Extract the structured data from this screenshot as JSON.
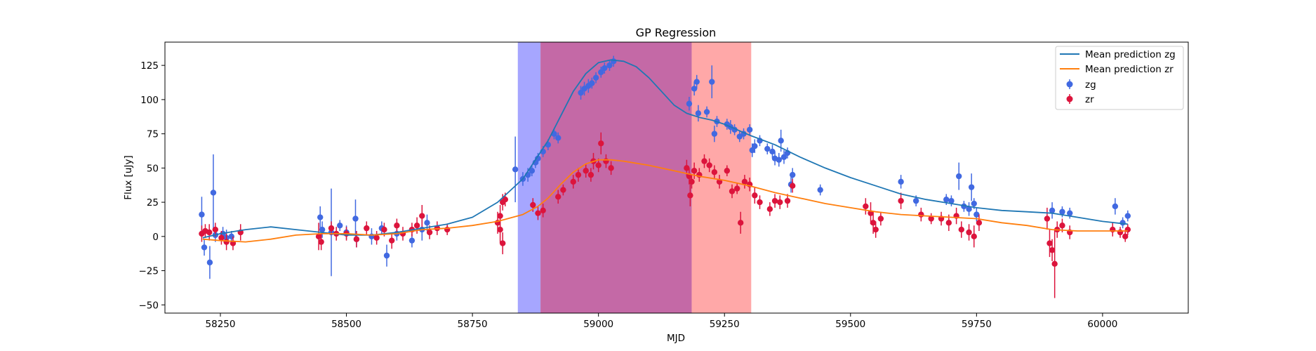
{
  "chart_data": {
    "type": "scatter",
    "title": "GP Regression",
    "xlabel": "MJD",
    "ylabel": "Flux [uJy]",
    "xlim": [
      58140,
      60170
    ],
    "ylim": [
      -56,
      142
    ],
    "xticks": [
      58250,
      58500,
      58750,
      59000,
      59250,
      59500,
      59750,
      60000
    ],
    "yticks": [
      -50,
      -25,
      0,
      25,
      50,
      75,
      100,
      125
    ],
    "legend_position": "top-right",
    "grid": false,
    "shaded_regions": [
      {
        "x_range": [
          58840,
          58885
        ],
        "color": "#a6a6ff"
      },
      {
        "x_range": [
          58885,
          59185
        ],
        "color": "#c469a6"
      },
      {
        "x_range": [
          59185,
          59303
        ],
        "color": "#ffa8a8"
      }
    ],
    "series": [
      {
        "name": "Mean prediction zg",
        "kind": "line",
        "color": "#1f77b4",
        "x": [
          58215,
          58250,
          58300,
          58350,
          58400,
          58450,
          58500,
          58550,
          58600,
          58650,
          58700,
          58750,
          58800,
          58850,
          58900,
          58925,
          58950,
          58975,
          59000,
          59025,
          59050,
          59075,
          59100,
          59125,
          59150,
          59175,
          59200,
          59225,
          59250,
          59275,
          59300,
          59350,
          59400,
          59450,
          59500,
          59550,
          59600,
          59650,
          59700,
          59750,
          59800,
          59850,
          59900,
          59950,
          60000,
          60050
        ],
        "y": [
          -1,
          2,
          5,
          7,
          5,
          3,
          1,
          1,
          3,
          6,
          9,
          14,
          25,
          42,
          70,
          88,
          106,
          119,
          127,
          129,
          128,
          124,
          116,
          106,
          96,
          90,
          87,
          85,
          82,
          78,
          74,
          67,
          58,
          50,
          43,
          37,
          31,
          27,
          24,
          21,
          19,
          18,
          17,
          14,
          11,
          9
        ]
      },
      {
        "name": "Mean prediction zr",
        "kind": "line",
        "color": "#ff7f0e",
        "x": [
          58215,
          58250,
          58300,
          58350,
          58400,
          58450,
          58500,
          58550,
          58600,
          58650,
          58700,
          58750,
          58800,
          58850,
          58880,
          58900,
          58925,
          58950,
          58975,
          59000,
          59025,
          59050,
          59100,
          59150,
          59200,
          59250,
          59300,
          59350,
          59400,
          59450,
          59500,
          59550,
          59600,
          59650,
          59700,
          59750,
          59800,
          59850,
          59900,
          59950,
          60000,
          60050
        ],
        "y": [
          -2,
          -3,
          -4,
          -2,
          1,
          2,
          2,
          1,
          2,
          5,
          6,
          8,
          11,
          16,
          22,
          28,
          38,
          47,
          53,
          56,
          56,
          55,
          52,
          48,
          44,
          41,
          37,
          32,
          28,
          24,
          21,
          18,
          16,
          15,
          14,
          13,
          10,
          8,
          5,
          4,
          4,
          4
        ]
      },
      {
        "name": "zg",
        "kind": "errorbar",
        "color": "#4169e1",
        "points": [
          [
            58213,
            16,
            13
          ],
          [
            58218,
            -8,
            6
          ],
          [
            58229,
            -19,
            12
          ],
          [
            58236,
            32,
            28
          ],
          [
            58240,
            1,
            5
          ],
          [
            58255,
            2,
            5
          ],
          [
            58262,
            -1,
            6
          ],
          [
            58272,
            0,
            4
          ],
          [
            58448,
            14,
            8
          ],
          [
            58452,
            5,
            6
          ],
          [
            58470,
            3,
            32
          ],
          [
            58487,
            8,
            4
          ],
          [
            58500,
            3,
            5
          ],
          [
            58518,
            13,
            14
          ],
          [
            58520,
            -2,
            6
          ],
          [
            58550,
            0,
            6
          ],
          [
            58570,
            6,
            5
          ],
          [
            58580,
            -14,
            8
          ],
          [
            58600,
            2,
            5
          ],
          [
            58630,
            -3,
            5
          ],
          [
            58650,
            5,
            8
          ],
          [
            58660,
            10,
            6
          ],
          [
            58835,
            49,
            24
          ],
          [
            58850,
            42,
            5
          ],
          [
            58860,
            45,
            5
          ],
          [
            58868,
            48,
            4
          ],
          [
            58875,
            54,
            4
          ],
          [
            58880,
            57,
            4
          ],
          [
            58890,
            62,
            4
          ],
          [
            58900,
            67,
            4
          ],
          [
            58912,
            75,
            4
          ],
          [
            58920,
            72,
            4
          ],
          [
            58965,
            105,
            5
          ],
          [
            58972,
            108,
            5
          ],
          [
            58980,
            110,
            5
          ],
          [
            58987,
            112,
            4
          ],
          [
            58995,
            116,
            4
          ],
          [
            59005,
            120,
            4
          ],
          [
            59012,
            123,
            4
          ],
          [
            59022,
            125,
            4
          ],
          [
            59030,
            128,
            4
          ],
          [
            59180,
            97,
            5
          ],
          [
            59190,
            108,
            5
          ],
          [
            59195,
            113,
            5
          ],
          [
            59198,
            90,
            6
          ],
          [
            59215,
            91,
            4
          ],
          [
            59225,
            113,
            12
          ],
          [
            59230,
            75,
            6
          ],
          [
            59235,
            84,
            4
          ],
          [
            59255,
            82,
            4
          ],
          [
            59262,
            80,
            5
          ],
          [
            59270,
            78,
            4
          ],
          [
            59280,
            73,
            4
          ],
          [
            59288,
            75,
            4
          ],
          [
            59300,
            78,
            4
          ],
          [
            59305,
            63,
            5
          ],
          [
            59310,
            66,
            5
          ],
          [
            59320,
            70,
            4
          ],
          [
            59335,
            64,
            4
          ],
          [
            59345,
            62,
            5
          ],
          [
            59350,
            57,
            5
          ],
          [
            59358,
            56,
            5
          ],
          [
            59362,
            70,
            8
          ],
          [
            59368,
            58,
            5
          ],
          [
            59375,
            61,
            4
          ],
          [
            59382,
            38,
            6
          ],
          [
            59385,
            45,
            5
          ],
          [
            59440,
            34,
            4
          ],
          [
            59600,
            40,
            5
          ],
          [
            59630,
            26,
            4
          ],
          [
            59690,
            27,
            4
          ],
          [
            59700,
            26,
            4
          ],
          [
            59715,
            44,
            10
          ],
          [
            59725,
            22,
            4
          ],
          [
            59735,
            20,
            5
          ],
          [
            59740,
            36,
            10
          ],
          [
            59745,
            24,
            4
          ],
          [
            59750,
            16,
            5
          ],
          [
            59900,
            19,
            6
          ],
          [
            59920,
            18,
            4
          ],
          [
            59935,
            17,
            4
          ],
          [
            60025,
            22,
            6
          ],
          [
            60040,
            10,
            4
          ],
          [
            60050,
            15,
            4
          ]
        ]
      },
      {
        "name": "zr",
        "kind": "errorbar",
        "color": "#dc143c",
        "points": [
          [
            58213,
            2,
            6
          ],
          [
            58220,
            4,
            5
          ],
          [
            58228,
            3,
            6
          ],
          [
            58240,
            5,
            5
          ],
          [
            58252,
            -1,
            5
          ],
          [
            58262,
            -4,
            6
          ],
          [
            58275,
            -5,
            5
          ],
          [
            58290,
            3,
            6
          ],
          [
            58445,
            0,
            10
          ],
          [
            58450,
            -4,
            6
          ],
          [
            58470,
            6,
            5
          ],
          [
            58480,
            2,
            5
          ],
          [
            58500,
            2,
            5
          ],
          [
            58520,
            -2,
            6
          ],
          [
            58540,
            6,
            5
          ],
          [
            58560,
            -1,
            5
          ],
          [
            58575,
            5,
            5
          ],
          [
            58590,
            -3,
            6
          ],
          [
            58600,
            8,
            5
          ],
          [
            58612,
            2,
            5
          ],
          [
            58630,
            5,
            5
          ],
          [
            58640,
            8,
            6
          ],
          [
            58650,
            15,
            8
          ],
          [
            58665,
            3,
            5
          ],
          [
            58680,
            6,
            5
          ],
          [
            58700,
            5,
            4
          ],
          [
            58800,
            10,
            8
          ],
          [
            58805,
            15,
            8
          ],
          [
            58810,
            25,
            6
          ],
          [
            58815,
            27,
            5
          ],
          [
            58805,
            5,
            10
          ],
          [
            58810,
            -5,
            8
          ],
          [
            58870,
            23,
            5
          ],
          [
            58880,
            17,
            5
          ],
          [
            58890,
            19,
            5
          ],
          [
            58920,
            29,
            5
          ],
          [
            58930,
            34,
            4
          ],
          [
            58950,
            40,
            5
          ],
          [
            58960,
            45,
            5
          ],
          [
            58975,
            48,
            5
          ],
          [
            58985,
            45,
            5
          ],
          [
            58990,
            55,
            6
          ],
          [
            59000,
            52,
            5
          ],
          [
            59005,
            68,
            8
          ],
          [
            59015,
            55,
            5
          ],
          [
            59025,
            50,
            5
          ],
          [
            59175,
            50,
            6
          ],
          [
            59180,
            44,
            6
          ],
          [
            59182,
            30,
            8
          ],
          [
            59185,
            40,
            5
          ],
          [
            59190,
            48,
            6
          ],
          [
            59200,
            45,
            5
          ],
          [
            59210,
            55,
            5
          ],
          [
            59220,
            52,
            5
          ],
          [
            59230,
            47,
            5
          ],
          [
            59240,
            40,
            5
          ],
          [
            59255,
            48,
            4
          ],
          [
            59265,
            33,
            5
          ],
          [
            59275,
            35,
            4
          ],
          [
            59282,
            10,
            8
          ],
          [
            59290,
            40,
            5
          ],
          [
            59300,
            38,
            5
          ],
          [
            59310,
            30,
            6
          ],
          [
            59320,
            25,
            5
          ],
          [
            59340,
            20,
            5
          ],
          [
            59350,
            26,
            5
          ],
          [
            59360,
            25,
            5
          ],
          [
            59375,
            26,
            5
          ],
          [
            59385,
            37,
            5
          ],
          [
            59530,
            22,
            6
          ],
          [
            59540,
            17,
            8
          ],
          [
            59545,
            10,
            8
          ],
          [
            59550,
            5,
            6
          ],
          [
            59560,
            13,
            5
          ],
          [
            59600,
            26,
            6
          ],
          [
            59640,
            16,
            5
          ],
          [
            59660,
            13,
            4
          ],
          [
            59680,
            13,
            5
          ],
          [
            59695,
            10,
            6
          ],
          [
            59710,
            15,
            6
          ],
          [
            59720,
            5,
            6
          ],
          [
            59735,
            3,
            6
          ],
          [
            59745,
            0,
            8
          ],
          [
            59755,
            10,
            6
          ],
          [
            59890,
            13,
            8
          ],
          [
            59895,
            -5,
            10
          ],
          [
            59900,
            -10,
            8
          ],
          [
            59905,
            -20,
            25
          ],
          [
            59910,
            5,
            6
          ],
          [
            59920,
            8,
            5
          ],
          [
            59935,
            3,
            5
          ],
          [
            60020,
            5,
            5
          ],
          [
            60035,
            3,
            4
          ],
          [
            60045,
            0,
            4
          ],
          [
            60050,
            5,
            4
          ]
        ]
      }
    ]
  },
  "legend": {
    "items": [
      {
        "label": "Mean prediction zg"
      },
      {
        "label": "Mean prediction zr"
      },
      {
        "label": "zg"
      },
      {
        "label": "zr"
      }
    ]
  }
}
